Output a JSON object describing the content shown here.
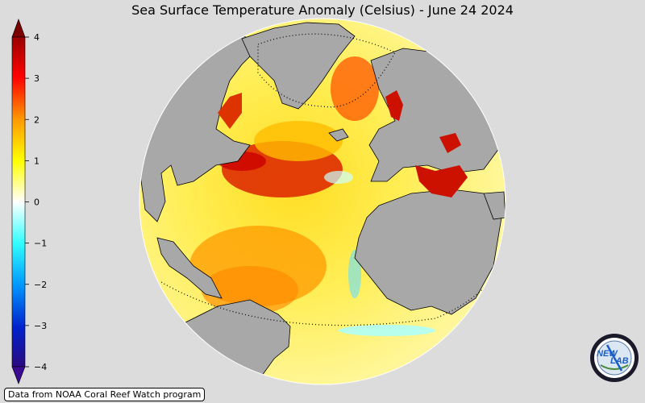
{
  "title": "Sea Surface Temperature Anomaly (Celsius) - June 24 2024",
  "colorbar": {
    "min": -4,
    "max": 4,
    "tick_labels": [
      "4",
      "3",
      "2",
      "1",
      "0",
      "−1",
      "−2",
      "−3",
      "−4"
    ],
    "extend": "both",
    "colors": [
      "#2a0a80",
      "#0033cc",
      "#0099ff",
      "#33ffff",
      "#ffffff",
      "#ffff33",
      "#ffaa00",
      "#ff3300",
      "#990000"
    ]
  },
  "map": {
    "projection": "orthographic",
    "land_color": "#a8a8a8",
    "ocean_background": "#ffee66",
    "border_color": "#000000"
  },
  "source_note": "Data from NOAA Coral Reef Watch program",
  "logo": {
    "text_top": "NEW",
    "text_bottom": "LAB"
  }
}
